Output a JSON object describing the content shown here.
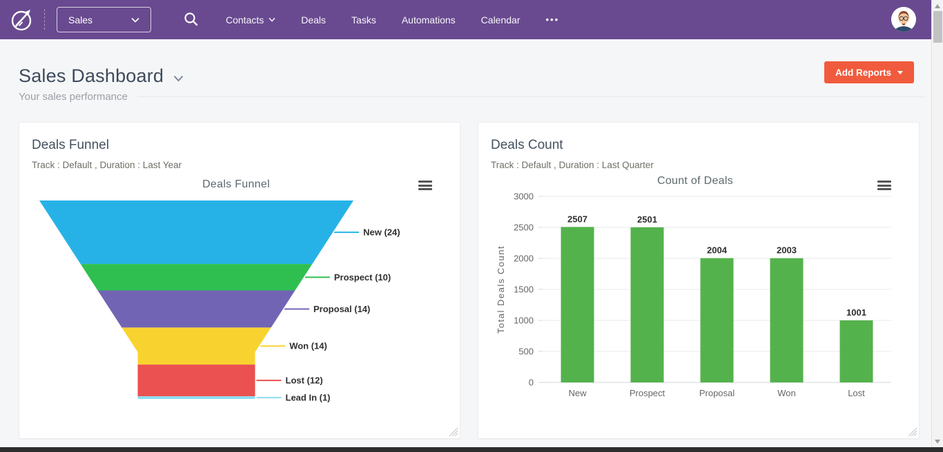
{
  "navbar": {
    "app_selector": {
      "label": "Sales"
    },
    "menu": [
      {
        "label": "Contacts"
      },
      {
        "label": "Deals"
      },
      {
        "label": "Tasks"
      },
      {
        "label": "Automations"
      },
      {
        "label": "Calendar"
      },
      {
        "label": "•••"
      }
    ]
  },
  "page_header": {
    "title": "Sales Dashboard",
    "subtitle": "Your sales performance",
    "add_reports_label": "Add Reports"
  },
  "cards": [
    {
      "title": "Deals Funnel",
      "meta": "Track : Default , Duration : Last Year"
    },
    {
      "title": "Deals Count",
      "meta": "Track : Default , Duration : Last Quarter"
    }
  ],
  "chart_data": [
    {
      "type": "funnel",
      "title": "Deals Funnel",
      "series": [
        {
          "name": "New",
          "value": 24,
          "color": "#27b2e7"
        },
        {
          "name": "Prospect",
          "value": 10,
          "color": "#2fbf51"
        },
        {
          "name": "Proposal",
          "value": 14,
          "color": "#7164b4"
        },
        {
          "name": "Won",
          "value": 14,
          "color": "#f8d330"
        },
        {
          "name": "Lost",
          "value": 12,
          "color": "#ea5150"
        },
        {
          "name": "Lead In",
          "value": 1,
          "color": "#8edcf0"
        }
      ],
      "label_format": "{name} ({value})"
    },
    {
      "type": "bar",
      "title": "Count of Deals",
      "categories": [
        "New",
        "Prospect",
        "Proposal",
        "Won",
        "Lost"
      ],
      "values": [
        2507,
        2501,
        2004,
        2003,
        1001
      ],
      "xlabel": "",
      "ylabel": "Total Deals Count",
      "ylim": [
        0,
        3000
      ],
      "ytick_step": 500,
      "bar_color": "#54b24c",
      "grid": true,
      "legend": "none"
    }
  ],
  "colors": {
    "navbar_bg": "#694a90",
    "accent_orange": "#f15b3d",
    "page_bg": "#f5f6f8",
    "grid_line": "#e8e8ea",
    "axis_line": "#d0d7de"
  }
}
